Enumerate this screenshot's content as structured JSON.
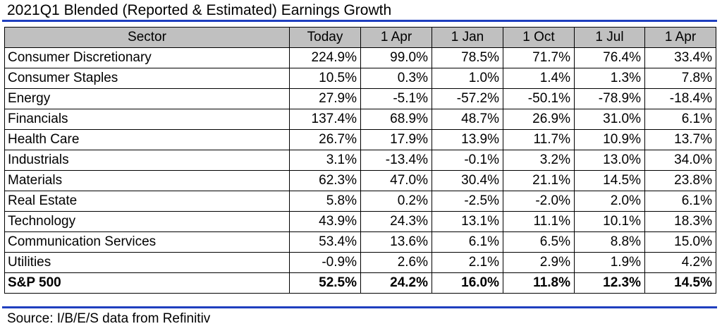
{
  "title": "2021Q1 Blended (Reported & Estimated) Earnings Growth",
  "accent_color": "#1f3fbf",
  "header_color": "#c0c0c0",
  "table": {
    "columns": [
      "Sector",
      "Today",
      "1 Apr",
      "1 Jan",
      "1 Oct",
      "1 Jul",
      "1 Apr"
    ],
    "rows": [
      {
        "sector": "Consumer Discretionary",
        "values": [
          "224.9%",
          "99.0%",
          "78.5%",
          "71.7%",
          "76.4%",
          "33.4%"
        ]
      },
      {
        "sector": "Consumer Staples",
        "values": [
          "10.5%",
          "0.3%",
          "1.0%",
          "1.4%",
          "1.3%",
          "7.8%"
        ]
      },
      {
        "sector": "Energy",
        "values": [
          "27.9%",
          "-5.1%",
          "-57.2%",
          "-50.1%",
          "-78.9%",
          "-18.4%"
        ]
      },
      {
        "sector": "Financials",
        "values": [
          "137.4%",
          "68.9%",
          "48.7%",
          "26.9%",
          "31.0%",
          "6.1%"
        ]
      },
      {
        "sector": "Health Care",
        "values": [
          "26.7%",
          "17.9%",
          "13.9%",
          "11.7%",
          "10.9%",
          "13.7%"
        ]
      },
      {
        "sector": "Industrials",
        "values": [
          "3.1%",
          "-13.4%",
          "-0.1%",
          "3.2%",
          "13.0%",
          "34.0%"
        ]
      },
      {
        "sector": "Materials",
        "values": [
          "62.3%",
          "47.0%",
          "30.4%",
          "21.1%",
          "14.5%",
          "23.8%"
        ]
      },
      {
        "sector": "Real Estate",
        "values": [
          "5.8%",
          "0.2%",
          "-2.5%",
          "-2.0%",
          "2.0%",
          "6.1%"
        ]
      },
      {
        "sector": "Technology",
        "values": [
          "43.9%",
          "24.3%",
          "13.1%",
          "11.1%",
          "10.1%",
          "18.3%"
        ]
      },
      {
        "sector": "Communication Services",
        "values": [
          "53.4%",
          "13.6%",
          "6.1%",
          "6.5%",
          "8.8%",
          "15.0%"
        ]
      },
      {
        "sector": "Utilities",
        "values": [
          "-0.9%",
          "2.6%",
          "2.1%",
          "2.9%",
          "1.9%",
          "4.2%"
        ]
      }
    ],
    "total": {
      "sector": "S&P 500",
      "values": [
        "52.5%",
        "24.2%",
        "16.0%",
        "11.8%",
        "12.3%",
        "14.5%"
      ]
    }
  },
  "source": "Source: I/B/E/S data from Refinitiv"
}
